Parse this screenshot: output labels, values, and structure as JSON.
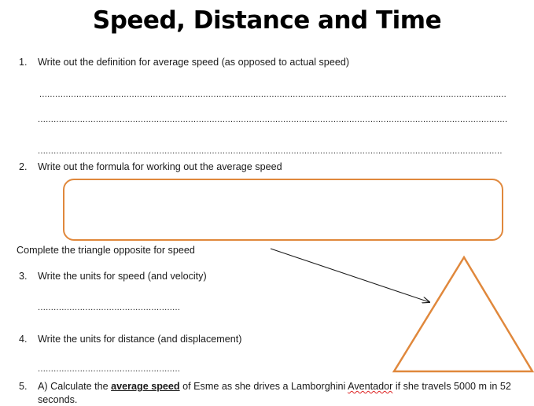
{
  "title": "Speed, Distance and Time",
  "questions": [
    {
      "number": "1.",
      "text": "Write out the definition for average speed (as opposed to actual speed)"
    },
    {
      "number": "2.",
      "text": "Write out the formula for working out the average speed"
    },
    {
      "number": "3.",
      "text": "Write the units for speed (and velocity)"
    },
    {
      "number": "4.",
      "text": "Write the units for distance (and displacement)"
    },
    {
      "number": "5.",
      "part_a": "A) Calculate the ",
      "emphasis": "average speed",
      "middle": " of Esme as she drives a Lamborghini ",
      "brand": "Aventador",
      "end": " if she travels 5000 m in 52",
      "continuation": "seconds."
    }
  ],
  "triangle_prompt": "Complete the triangle opposite for speed",
  "colors": {
    "accent": "#e0883c",
    "arrow": "#1a1a1a"
  }
}
